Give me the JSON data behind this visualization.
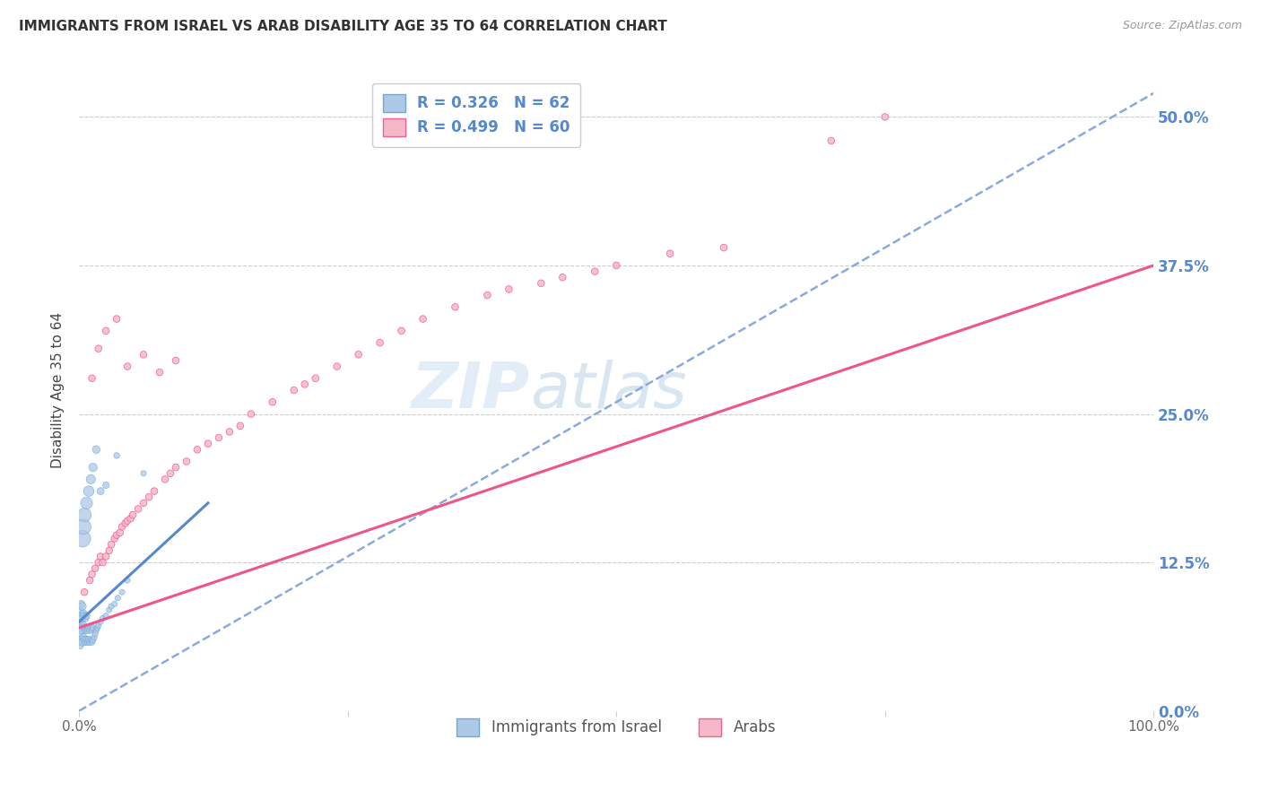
{
  "title": "IMMIGRANTS FROM ISRAEL VS ARAB DISABILITY AGE 35 TO 64 CORRELATION CHART",
  "source": "Source: ZipAtlas.com",
  "ylabel": "Disability Age 35 to 64",
  "ytick_labels": [
    "0.0%",
    "12.5%",
    "25.0%",
    "37.5%",
    "50.0%"
  ],
  "ytick_values": [
    0.0,
    0.125,
    0.25,
    0.375,
    0.5
  ],
  "xlim": [
    0.0,
    1.0
  ],
  "ylim": [
    0.0,
    0.54
  ],
  "legend_r_israel": "R = 0.326",
  "legend_n_israel": "N = 62",
  "legend_r_arab": "R = 0.499",
  "legend_n_arab": "N = 60",
  "legend_label_israel": "Immigrants from Israel",
  "legend_label_arab": "Arabs",
  "color_israel_fill": "#aec8e8",
  "color_arab_fill": "#f5b8c8",
  "color_israel_edge": "#6aaad4",
  "color_arab_edge": "#f06090",
  "color_israel_line": "#5588cc",
  "color_arab_line": "#ee5588",
  "color_dashed_line": "#88aadd",
  "watermark_zip": "ZIP",
  "watermark_atlas": "atlas",
  "israel_x": [
    0.001,
    0.001,
    0.001,
    0.001,
    0.002,
    0.002,
    0.002,
    0.002,
    0.003,
    0.003,
    0.003,
    0.003,
    0.004,
    0.004,
    0.004,
    0.005,
    0.005,
    0.005,
    0.006,
    0.006,
    0.006,
    0.007,
    0.007,
    0.007,
    0.008,
    0.008,
    0.009,
    0.009,
    0.01,
    0.01,
    0.011,
    0.011,
    0.012,
    0.012,
    0.013,
    0.013,
    0.014,
    0.015,
    0.016,
    0.017,
    0.018,
    0.02,
    0.022,
    0.025,
    0.028,
    0.03,
    0.033,
    0.036,
    0.04,
    0.045,
    0.003,
    0.004,
    0.005,
    0.007,
    0.009,
    0.011,
    0.013,
    0.016,
    0.02,
    0.025,
    0.035,
    0.06
  ],
  "israel_y": [
    0.055,
    0.065,
    0.075,
    0.085,
    0.06,
    0.07,
    0.08,
    0.09,
    0.058,
    0.068,
    0.078,
    0.088,
    0.062,
    0.072,
    0.082,
    0.06,
    0.07,
    0.08,
    0.058,
    0.068,
    0.078,
    0.06,
    0.07,
    0.08,
    0.058,
    0.068,
    0.06,
    0.07,
    0.058,
    0.068,
    0.06,
    0.07,
    0.058,
    0.068,
    0.06,
    0.07,
    0.062,
    0.065,
    0.068,
    0.07,
    0.072,
    0.075,
    0.078,
    0.08,
    0.085,
    0.088,
    0.09,
    0.095,
    0.1,
    0.11,
    0.145,
    0.155,
    0.165,
    0.175,
    0.185,
    0.195,
    0.205,
    0.22,
    0.185,
    0.19,
    0.215,
    0.2
  ],
  "israel_sizes": [
    30,
    30,
    30,
    30,
    35,
    35,
    35,
    35,
    40,
    40,
    40,
    40,
    35,
    35,
    35,
    35,
    35,
    35,
    30,
    30,
    30,
    30,
    30,
    30,
    28,
    28,
    28,
    28,
    28,
    28,
    25,
    25,
    25,
    25,
    25,
    25,
    22,
    22,
    22,
    22,
    20,
    20,
    20,
    20,
    20,
    20,
    20,
    20,
    20,
    20,
    180,
    150,
    120,
    90,
    70,
    55,
    45,
    38,
    32,
    28,
    22,
    20
  ],
  "arab_x": [
    0.005,
    0.01,
    0.012,
    0.015,
    0.018,
    0.02,
    0.022,
    0.025,
    0.028,
    0.03,
    0.033,
    0.035,
    0.038,
    0.04,
    0.043,
    0.045,
    0.048,
    0.05,
    0.055,
    0.06,
    0.065,
    0.07,
    0.08,
    0.085,
    0.09,
    0.1,
    0.11,
    0.12,
    0.13,
    0.14,
    0.15,
    0.16,
    0.18,
    0.2,
    0.21,
    0.22,
    0.24,
    0.26,
    0.28,
    0.3,
    0.32,
    0.35,
    0.38,
    0.4,
    0.43,
    0.45,
    0.48,
    0.5,
    0.55,
    0.6,
    0.012,
    0.018,
    0.025,
    0.035,
    0.045,
    0.06,
    0.075,
    0.09,
    0.7,
    0.75
  ],
  "arab_y": [
    0.1,
    0.11,
    0.115,
    0.12,
    0.125,
    0.13,
    0.125,
    0.13,
    0.135,
    0.14,
    0.145,
    0.148,
    0.15,
    0.155,
    0.158,
    0.16,
    0.162,
    0.165,
    0.17,
    0.175,
    0.18,
    0.185,
    0.195,
    0.2,
    0.205,
    0.21,
    0.22,
    0.225,
    0.23,
    0.235,
    0.24,
    0.25,
    0.26,
    0.27,
    0.275,
    0.28,
    0.29,
    0.3,
    0.31,
    0.32,
    0.33,
    0.34,
    0.35,
    0.355,
    0.36,
    0.365,
    0.37,
    0.375,
    0.385,
    0.39,
    0.28,
    0.305,
    0.32,
    0.33,
    0.29,
    0.3,
    0.285,
    0.295,
    0.48,
    0.5
  ],
  "arab_sizes": [
    30,
    30,
    30,
    30,
    30,
    30,
    30,
    30,
    30,
    30,
    30,
    30,
    30,
    30,
    30,
    30,
    30,
    30,
    30,
    30,
    30,
    30,
    30,
    30,
    30,
    30,
    30,
    30,
    30,
    30,
    30,
    30,
    30,
    30,
    30,
    30,
    30,
    30,
    30,
    30,
    30,
    30,
    30,
    30,
    30,
    30,
    30,
    30,
    30,
    30,
    30,
    30,
    30,
    30,
    30,
    30,
    30,
    30,
    30,
    30
  ],
  "israel_line_x0": 0.0,
  "israel_line_y0": 0.075,
  "israel_line_x1": 0.12,
  "israel_line_y1": 0.175,
  "arab_line_x0": 0.0,
  "arab_line_y0": 0.07,
  "arab_line_x1": 1.0,
  "arab_line_y1": 0.375,
  "dashed_line_x0": 0.0,
  "dashed_line_y0": 0.0,
  "dashed_line_x1": 1.0,
  "dashed_line_y1": 0.52,
  "background_color": "#ffffff",
  "grid_color": "#cccccc",
  "title_color": "#333333",
  "right_tick_color": "#5588cc"
}
